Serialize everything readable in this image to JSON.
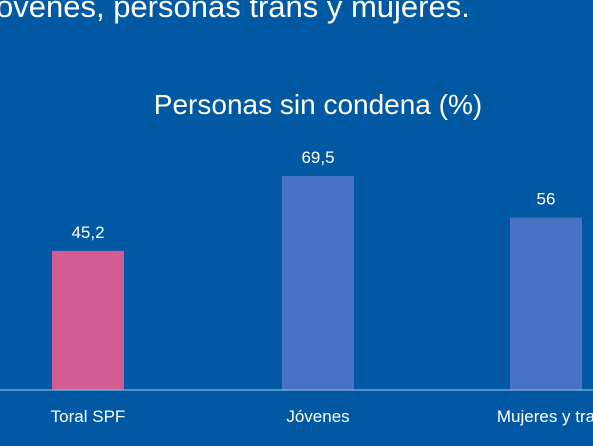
{
  "slide": {
    "headline": "óvenes, personas trans y mujeres."
  },
  "chart_data": {
    "type": "bar",
    "title": "Personas sin condena (%)",
    "categories": [
      "Toral SPF",
      "Jóvenes",
      "Mujeres y tra"
    ],
    "values": [
      45.2,
      69.5,
      56
    ],
    "value_labels": [
      "45,2",
      "69,5",
      "56"
    ],
    "bar_colors": [
      "#d45c95",
      "#4673c4",
      "#4673c4"
    ],
    "xlabel": "",
    "ylabel": "",
    "ylim": [
      0,
      80
    ],
    "grid": false,
    "legend": "none"
  },
  "colors": {
    "background": "#0158a3",
    "axis": "#9fc3e6",
    "text": "#ffffff"
  }
}
